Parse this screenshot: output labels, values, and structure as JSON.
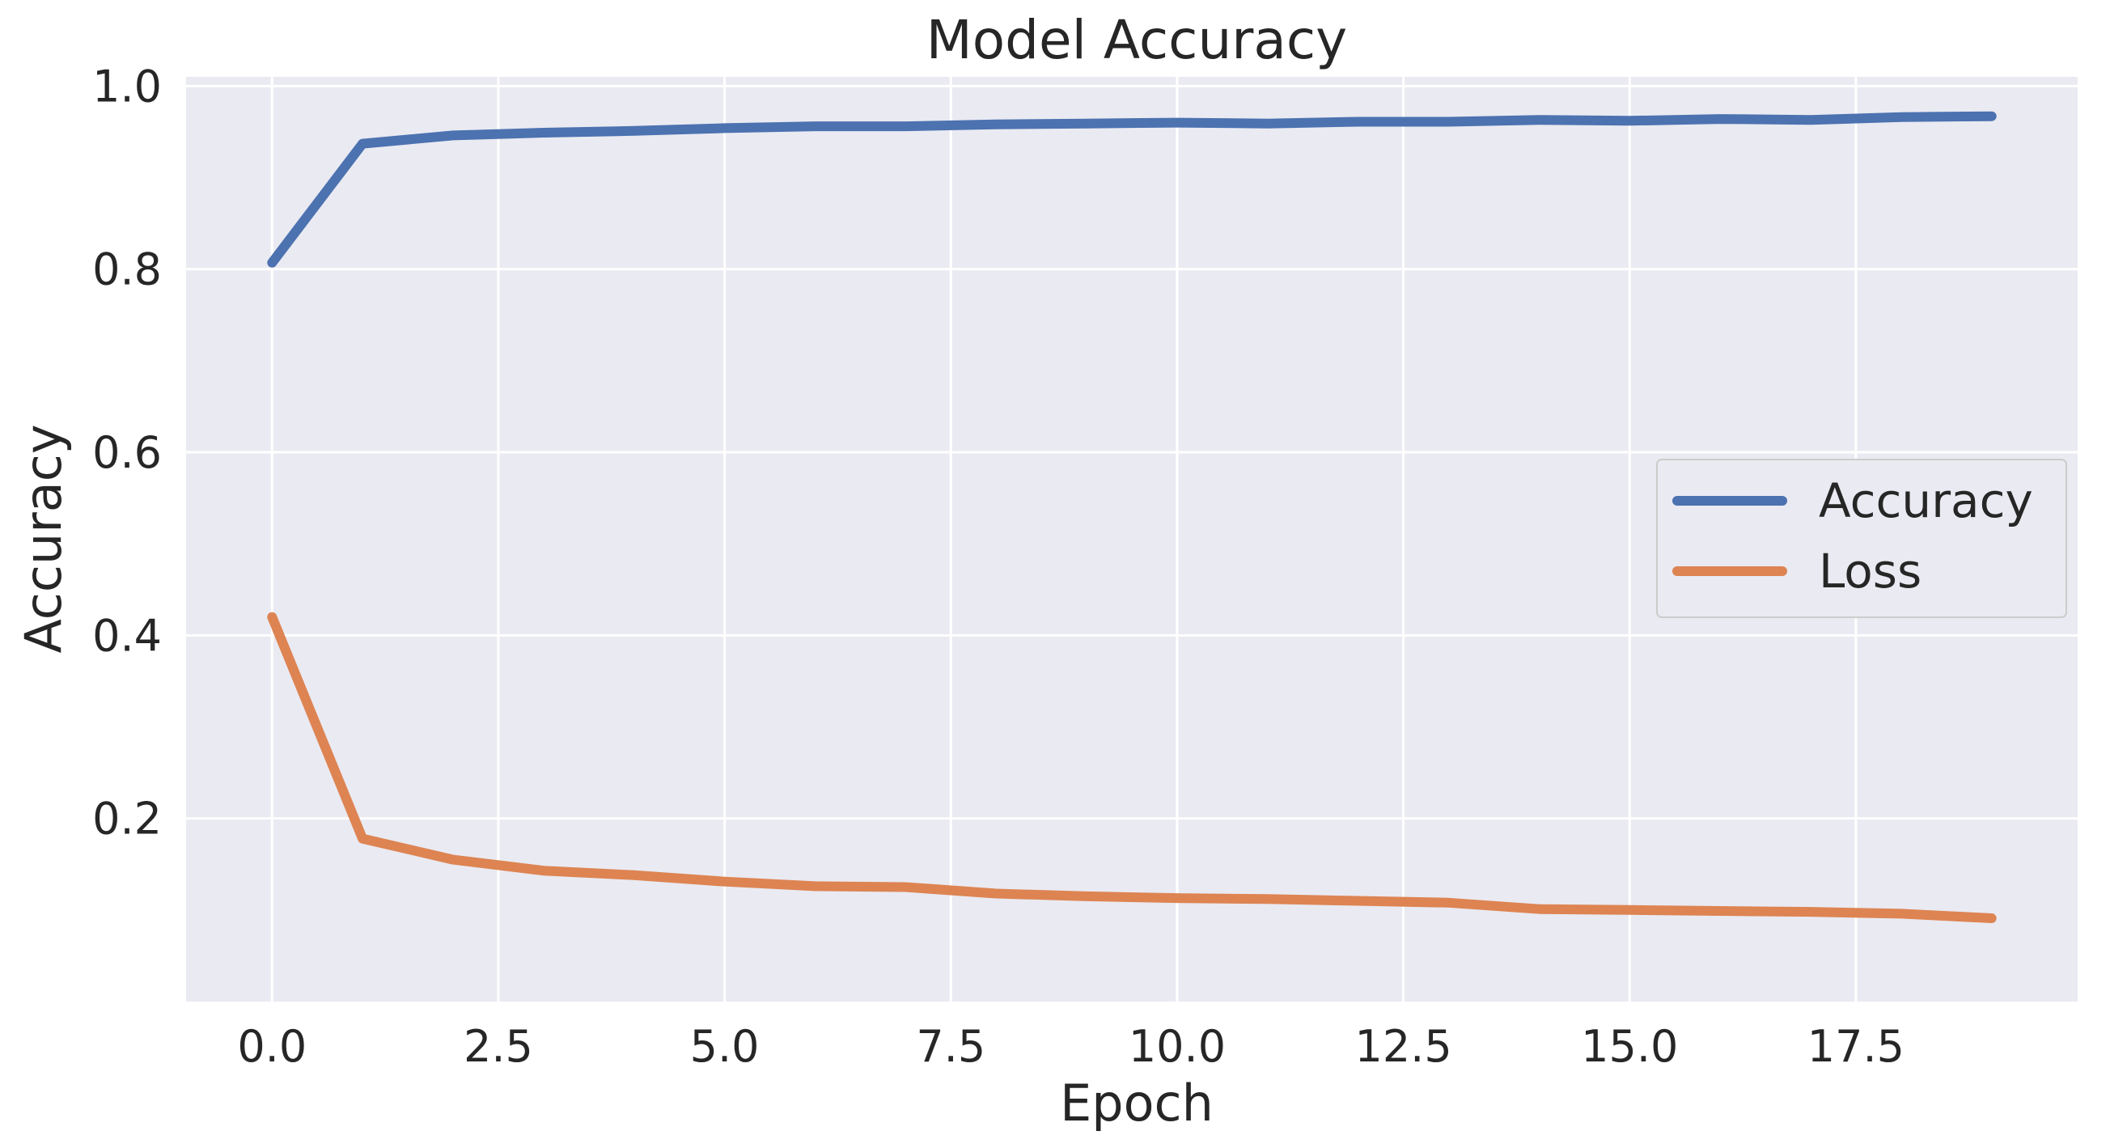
{
  "chart_data": {
    "type": "line",
    "title": "Model Accuracy",
    "xlabel": "Epoch",
    "ylabel": "Accuracy",
    "x": [
      0,
      1,
      2,
      3,
      4,
      5,
      6,
      7,
      8,
      9,
      10,
      11,
      12,
      13,
      14,
      15,
      16,
      17,
      18,
      19
    ],
    "xlim": [
      -0.95,
      19.95
    ],
    "ylim": [
      0.0,
      1.01
    ],
    "xticks": [
      0.0,
      2.5,
      5.0,
      7.5,
      10.0,
      12.5,
      15.0,
      17.5
    ],
    "xtick_labels": [
      "0.0",
      "2.5",
      "5.0",
      "7.5",
      "10.0",
      "12.5",
      "15.0",
      "17.5"
    ],
    "yticks": [
      0.2,
      0.4,
      0.6,
      0.8,
      1.0
    ],
    "ytick_labels": [
      "0.2",
      "0.4",
      "0.6",
      "0.8",
      "1.0"
    ],
    "grid": true,
    "legend_position": "center-right",
    "background_color": "#eaeaf2",
    "series": [
      {
        "name": "Accuracy",
        "color": "#4c72b0",
        "values": [
          0.807,
          0.937,
          0.946,
          0.949,
          0.951,
          0.954,
          0.956,
          0.956,
          0.958,
          0.959,
          0.96,
          0.959,
          0.961,
          0.961,
          0.963,
          0.962,
          0.964,
          0.963,
          0.966,
          0.967
        ]
      },
      {
        "name": "Loss",
        "color": "#dd8452",
        "values": [
          0.42,
          0.178,
          0.155,
          0.143,
          0.138,
          0.131,
          0.126,
          0.125,
          0.118,
          0.115,
          0.113,
          0.112,
          0.11,
          0.108,
          0.101,
          0.1,
          0.099,
          0.098,
          0.096,
          0.091
        ]
      }
    ]
  }
}
